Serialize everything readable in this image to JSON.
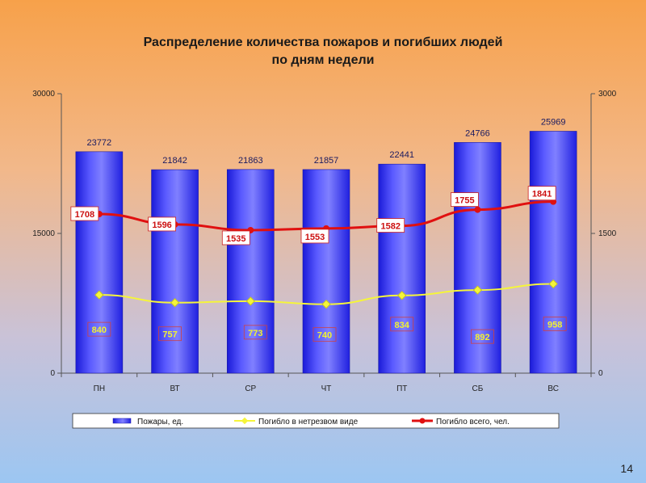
{
  "slide_number": "14",
  "chart_data": {
    "type": "bar",
    "title_lines": [
      "Распределение количества пожаров и погибших людей",
      "по дням недели"
    ],
    "categories": [
      "ПН",
      "ВТ",
      "СР",
      "ЧТ",
      "ПТ",
      "СБ",
      "ВС"
    ],
    "y_left": {
      "min": 0,
      "max": 30000,
      "ticks": [
        "0",
        "15000",
        "30000"
      ]
    },
    "y_right": {
      "min": 0,
      "max": 3000,
      "ticks": [
        "0",
        "1500",
        "3000"
      ]
    },
    "grid": false,
    "legend_position": "bottom",
    "series": [
      {
        "name": "Пожары, ед.",
        "kind": "bar",
        "axis": "left",
        "color": "#3333FF",
        "values": [
          23772,
          21842,
          21863,
          21857,
          22441,
          24766,
          25969
        ],
        "labels": [
          "23772",
          "21842",
          "21863",
          "21857",
          "22441",
          "24766",
          "25969"
        ]
      },
      {
        "name": "Погибло в нетрезвом виде",
        "kind": "line",
        "axis": "right",
        "color": "#F5F53A",
        "values": [
          840,
          757,
          773,
          740,
          834,
          892,
          958
        ],
        "labels": [
          "840",
          "757",
          "773",
          "740",
          "834",
          "892",
          "958"
        ]
      },
      {
        "name": "Погибло всего, чел.",
        "kind": "line",
        "axis": "right",
        "color": "#E01010",
        "values": [
          1708,
          1596,
          1535,
          1553,
          1582,
          1755,
          1841
        ],
        "labels": [
          "1708",
          "1596",
          "1535",
          "1553",
          "1582",
          "1755",
          "1841"
        ]
      }
    ]
  }
}
